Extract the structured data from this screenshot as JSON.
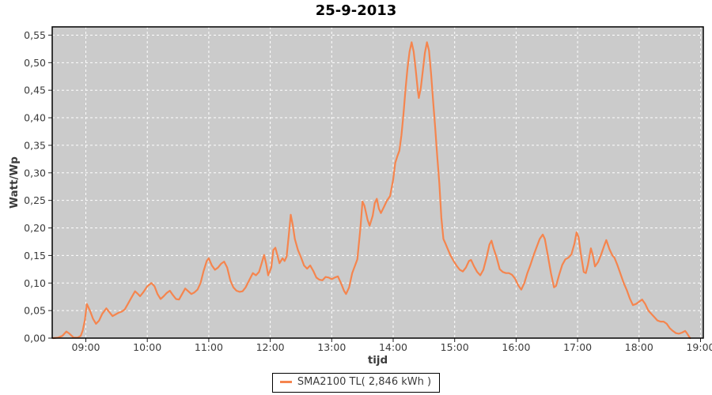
{
  "chart_data": {
    "type": "line",
    "title": "25-9-2013",
    "xlabel": "tijd",
    "ylabel": "Watt/Wp",
    "legend_position": "bottom-center",
    "grid": "white dashed on gray plot background",
    "x_range_hours": [
      8.45,
      19.04
    ],
    "y_range": [
      0,
      0.565
    ],
    "colors": {
      "plot_bg": "#CBCBCB",
      "grid": "#FFFFFF",
      "border": "#000000",
      "tick_text": "#3b3b3b",
      "series": "#F5854E"
    },
    "x_ticks": [
      {
        "hour": 9,
        "label": "09:00"
      },
      {
        "hour": 10,
        "label": "10:00"
      },
      {
        "hour": 11,
        "label": "11:00"
      },
      {
        "hour": 12,
        "label": "12:00"
      },
      {
        "hour": 13,
        "label": "13:00"
      },
      {
        "hour": 14,
        "label": "14:00"
      },
      {
        "hour": 15,
        "label": "15:00"
      },
      {
        "hour": 16,
        "label": "16:00"
      },
      {
        "hour": 17,
        "label": "17:00"
      },
      {
        "hour": 18,
        "label": "18:00"
      },
      {
        "hour": 19,
        "label": "19:00"
      }
    ],
    "y_ticks": [
      {
        "value": 0.0,
        "label": "0,00"
      },
      {
        "value": 0.05,
        "label": "0,05"
      },
      {
        "value": 0.1,
        "label": "0,10"
      },
      {
        "value": 0.15,
        "label": "0,15"
      },
      {
        "value": 0.2,
        "label": "0,20"
      },
      {
        "value": 0.25,
        "label": "0,25"
      },
      {
        "value": 0.3,
        "label": "0,30"
      },
      {
        "value": 0.35,
        "label": "0,35"
      },
      {
        "value": 0.4,
        "label": "0,40"
      },
      {
        "value": 0.45,
        "label": "0,45"
      },
      {
        "value": 0.5,
        "label": "0,50"
      },
      {
        "value": 0.55,
        "label": "0,55"
      }
    ],
    "series": [
      {
        "name": "SMA2100 TL( 2,846 kWh )",
        "color": "#F5854E",
        "points": [
          [
            "08:28",
            0.0
          ],
          [
            "08:33",
            0.001
          ],
          [
            "08:37",
            0.004
          ],
          [
            "08:41",
            0.012
          ],
          [
            "08:44",
            0.008
          ],
          [
            "08:48",
            0.001
          ],
          [
            "08:52",
            0.001
          ],
          [
            "08:55",
            0.004
          ],
          [
            "08:57",
            0.014
          ],
          [
            "08:59",
            0.032
          ],
          [
            "09:01",
            0.062
          ],
          [
            "09:04",
            0.05
          ],
          [
            "09:07",
            0.035
          ],
          [
            "09:10",
            0.026
          ],
          [
            "09:13",
            0.032
          ],
          [
            "09:16",
            0.044
          ],
          [
            "09:20",
            0.054
          ],
          [
            "09:23",
            0.047
          ],
          [
            "09:26",
            0.04
          ],
          [
            "09:29",
            0.043
          ],
          [
            "09:32",
            0.046
          ],
          [
            "09:35",
            0.048
          ],
          [
            "09:38",
            0.052
          ],
          [
            "09:41",
            0.062
          ],
          [
            "09:44",
            0.072
          ],
          [
            "09:48",
            0.085
          ],
          [
            "09:51",
            0.08
          ],
          [
            "09:53",
            0.076
          ],
          [
            "09:56",
            0.083
          ],
          [
            "10:00",
            0.094
          ],
          [
            "10:04",
            0.1
          ],
          [
            "10:07",
            0.094
          ],
          [
            "10:10",
            0.08
          ],
          [
            "10:13",
            0.071
          ],
          [
            "10:16",
            0.076
          ],
          [
            "10:19",
            0.082
          ],
          [
            "10:22",
            0.086
          ],
          [
            "10:25",
            0.078
          ],
          [
            "10:28",
            0.071
          ],
          [
            "10:31",
            0.07
          ],
          [
            "10:34",
            0.08
          ],
          [
            "10:37",
            0.09
          ],
          [
            "10:40",
            0.085
          ],
          [
            "10:43",
            0.08
          ],
          [
            "10:46",
            0.083
          ],
          [
            "10:49",
            0.088
          ],
          [
            "10:52",
            0.1
          ],
          [
            "10:55",
            0.122
          ],
          [
            "10:58",
            0.14
          ],
          [
            "11:00",
            0.145
          ],
          [
            "11:03",
            0.132
          ],
          [
            "11:06",
            0.124
          ],
          [
            "11:09",
            0.128
          ],
          [
            "11:12",
            0.135
          ],
          [
            "11:15",
            0.139
          ],
          [
            "11:18",
            0.128
          ],
          [
            "11:21",
            0.105
          ],
          [
            "11:24",
            0.092
          ],
          [
            "11:27",
            0.086
          ],
          [
            "11:30",
            0.084
          ],
          [
            "11:33",
            0.085
          ],
          [
            "11:36",
            0.092
          ],
          [
            "11:40",
            0.107
          ],
          [
            "11:43",
            0.118
          ],
          [
            "11:46",
            0.114
          ],
          [
            "11:49",
            0.12
          ],
          [
            "11:52",
            0.138
          ],
          [
            "11:54",
            0.151
          ],
          [
            "11:56",
            0.135
          ],
          [
            "11:58",
            0.114
          ],
          [
            "12:01",
            0.128
          ],
          [
            "12:03",
            0.16
          ],
          [
            "12:05",
            0.164
          ],
          [
            "12:07",
            0.15
          ],
          [
            "12:09",
            0.136
          ],
          [
            "12:12",
            0.145
          ],
          [
            "12:14",
            0.14
          ],
          [
            "12:16",
            0.148
          ],
          [
            "12:18",
            0.185
          ],
          [
            "12:20",
            0.224
          ],
          [
            "12:22",
            0.205
          ],
          [
            "12:24",
            0.18
          ],
          [
            "12:27",
            0.16
          ],
          [
            "12:30",
            0.147
          ],
          [
            "12:33",
            0.132
          ],
          [
            "12:36",
            0.126
          ],
          [
            "12:39",
            0.132
          ],
          [
            "12:42",
            0.122
          ],
          [
            "12:45",
            0.11
          ],
          [
            "12:48",
            0.106
          ],
          [
            "12:51",
            0.105
          ],
          [
            "12:54",
            0.111
          ],
          [
            "12:57",
            0.11
          ],
          [
            "13:00",
            0.107
          ],
          [
            "13:03",
            0.11
          ],
          [
            "13:06",
            0.112
          ],
          [
            "13:09",
            0.1
          ],
          [
            "13:12",
            0.086
          ],
          [
            "13:14",
            0.08
          ],
          [
            "13:17",
            0.092
          ],
          [
            "13:20",
            0.118
          ],
          [
            "13:23",
            0.133
          ],
          [
            "13:25",
            0.143
          ],
          [
            "13:28",
            0.2
          ],
          [
            "13:30",
            0.248
          ],
          [
            "13:32",
            0.24
          ],
          [
            "13:35",
            0.215
          ],
          [
            "13:37",
            0.204
          ],
          [
            "13:40",
            0.222
          ],
          [
            "13:42",
            0.245
          ],
          [
            "13:44",
            0.253
          ],
          [
            "13:46",
            0.235
          ],
          [
            "13:48",
            0.227
          ],
          [
            "13:51",
            0.238
          ],
          [
            "13:54",
            0.25
          ],
          [
            "13:57",
            0.258
          ],
          [
            "14:00",
            0.288
          ],
          [
            "14:02",
            0.318
          ],
          [
            "14:04",
            0.33
          ],
          [
            "14:06",
            0.34
          ],
          [
            "14:08",
            0.368
          ],
          [
            "14:10",
            0.405
          ],
          [
            "14:12",
            0.45
          ],
          [
            "14:14",
            0.49
          ],
          [
            "14:16",
            0.52
          ],
          [
            "14:18",
            0.537
          ],
          [
            "14:20",
            0.52
          ],
          [
            "14:22",
            0.487
          ],
          [
            "14:24",
            0.45
          ],
          [
            "14:25",
            0.436
          ],
          [
            "14:27",
            0.455
          ],
          [
            "14:29",
            0.487
          ],
          [
            "14:31",
            0.518
          ],
          [
            "14:33",
            0.537
          ],
          [
            "14:35",
            0.522
          ],
          [
            "14:37",
            0.48
          ],
          [
            "14:39",
            0.43
          ],
          [
            "14:41",
            0.382
          ],
          [
            "14:43",
            0.33
          ],
          [
            "14:45",
            0.282
          ],
          [
            "14:47",
            0.218
          ],
          [
            "14:49",
            0.18
          ],
          [
            "14:51",
            0.172
          ],
          [
            "14:53",
            0.163
          ],
          [
            "14:56",
            0.15
          ],
          [
            "14:59",
            0.14
          ],
          [
            "15:02",
            0.131
          ],
          [
            "15:05",
            0.124
          ],
          [
            "15:08",
            0.121
          ],
          [
            "15:11",
            0.128
          ],
          [
            "15:14",
            0.14
          ],
          [
            "15:16",
            0.142
          ],
          [
            "15:19",
            0.13
          ],
          [
            "15:22",
            0.12
          ],
          [
            "15:25",
            0.114
          ],
          [
            "15:28",
            0.124
          ],
          [
            "15:31",
            0.145
          ],
          [
            "15:34",
            0.17
          ],
          [
            "15:36",
            0.177
          ],
          [
            "15:38",
            0.163
          ],
          [
            "15:41",
            0.146
          ],
          [
            "15:44",
            0.125
          ],
          [
            "15:47",
            0.12
          ],
          [
            "15:50",
            0.118
          ],
          [
            "15:53",
            0.118
          ],
          [
            "15:56",
            0.115
          ],
          [
            "15:59",
            0.108
          ],
          [
            "16:02",
            0.096
          ],
          [
            "16:05",
            0.088
          ],
          [
            "16:08",
            0.1
          ],
          [
            "16:11",
            0.118
          ],
          [
            "16:14",
            0.133
          ],
          [
            "16:17",
            0.15
          ],
          [
            "16:20",
            0.165
          ],
          [
            "16:23",
            0.18
          ],
          [
            "16:26",
            0.188
          ],
          [
            "16:28",
            0.18
          ],
          [
            "16:31",
            0.15
          ],
          [
            "16:34",
            0.118
          ],
          [
            "16:37",
            0.092
          ],
          [
            "16:39",
            0.095
          ],
          [
            "16:42",
            0.115
          ],
          [
            "16:45",
            0.133
          ],
          [
            "16:48",
            0.143
          ],
          [
            "16:51",
            0.146
          ],
          [
            "16:54",
            0.152
          ],
          [
            "16:57",
            0.172
          ],
          [
            "16:59",
            0.192
          ],
          [
            "17:01",
            0.183
          ],
          [
            "17:03",
            0.155
          ],
          [
            "17:06",
            0.12
          ],
          [
            "17:08",
            0.118
          ],
          [
            "17:10",
            0.133
          ],
          [
            "17:13",
            0.163
          ],
          [
            "17:15",
            0.15
          ],
          [
            "17:17",
            0.13
          ],
          [
            "17:20",
            0.138
          ],
          [
            "17:23",
            0.152
          ],
          [
            "17:26",
            0.168
          ],
          [
            "17:28",
            0.178
          ],
          [
            "17:31",
            0.162
          ],
          [
            "17:34",
            0.15
          ],
          [
            "17:36",
            0.146
          ],
          [
            "17:39",
            0.132
          ],
          [
            "17:42",
            0.116
          ],
          [
            "17:45",
            0.1
          ],
          [
            "17:48",
            0.087
          ],
          [
            "17:51",
            0.072
          ],
          [
            "17:54",
            0.06
          ],
          [
            "17:57",
            0.062
          ],
          [
            "18:00",
            0.066
          ],
          [
            "18:03",
            0.07
          ],
          [
            "18:06",
            0.062
          ],
          [
            "18:09",
            0.05
          ],
          [
            "18:12",
            0.044
          ],
          [
            "18:15",
            0.038
          ],
          [
            "18:18",
            0.032
          ],
          [
            "18:21",
            0.03
          ],
          [
            "18:24",
            0.03
          ],
          [
            "18:27",
            0.026
          ],
          [
            "18:30",
            0.018
          ],
          [
            "18:33",
            0.013
          ],
          [
            "18:36",
            0.009
          ],
          [
            "18:39",
            0.008
          ],
          [
            "18:42",
            0.01
          ],
          [
            "18:45",
            0.013
          ],
          [
            "18:47",
            0.008
          ],
          [
            "18:49",
            0.002
          ],
          [
            "18:50",
            0.0
          ]
        ]
      }
    ]
  }
}
